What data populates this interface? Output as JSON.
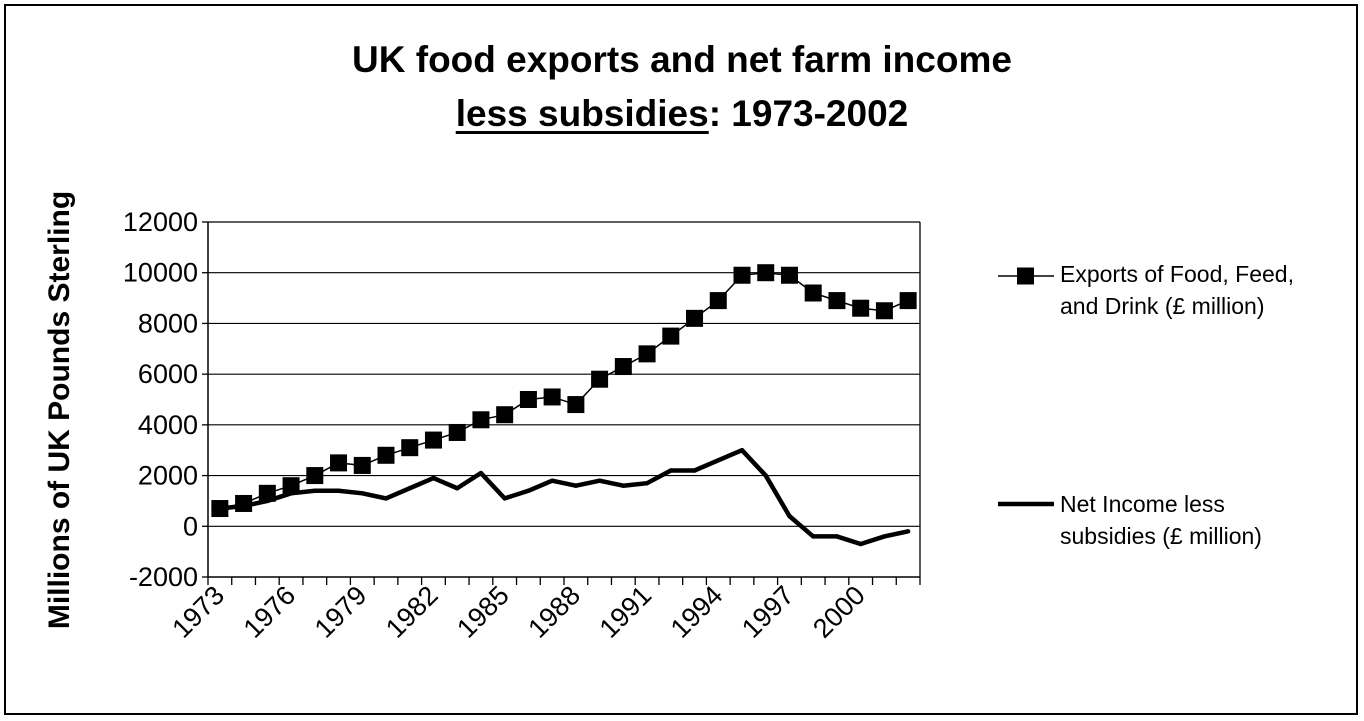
{
  "chart_data": {
    "type": "line",
    "title_line1": "UK food exports and net farm income",
    "title_line2_underlined": "less subsidies",
    "title_line2_rest": ": 1973-2002",
    "ylabel": "Millions of UK Pounds Sterling",
    "xlabel": "",
    "ylim": [
      -2000,
      12000
    ],
    "yticks": [
      -2000,
      0,
      2000,
      4000,
      6000,
      8000,
      10000,
      12000
    ],
    "x": [
      1973,
      1974,
      1975,
      1976,
      1977,
      1978,
      1979,
      1980,
      1981,
      1982,
      1983,
      1984,
      1985,
      1986,
      1987,
      1988,
      1989,
      1990,
      1991,
      1992,
      1993,
      1994,
      1995,
      1996,
      1997,
      1998,
      1999,
      2000,
      2001,
      2002
    ],
    "xtick_labels": [
      "1973",
      "1976",
      "1979",
      "1982",
      "1985",
      "1988",
      "1991",
      "1994",
      "1997",
      "2000"
    ],
    "grid": "horizontal",
    "legend_position": "right",
    "series": [
      {
        "name": "Exports of Food, Feed, and Drink (£ million)",
        "marker": "square",
        "values": [
          700,
          900,
          1300,
          1600,
          2000,
          2500,
          2400,
          2800,
          3100,
          3400,
          3700,
          4200,
          4400,
          5000,
          5100,
          4800,
          5800,
          6300,
          6800,
          7500,
          8200,
          8900,
          9900,
          10000,
          9900,
          9200,
          8900,
          8600,
          8500,
          8900
        ]
      },
      {
        "name": "Net Income less subsidies (£ million)",
        "marker": "none",
        "values": [
          700,
          800,
          1000,
          1300,
          1400,
          1400,
          1300,
          1100,
          1500,
          1900,
          1500,
          2100,
          1100,
          1400,
          1800,
          1600,
          1800,
          1600,
          1700,
          2200,
          2200,
          2600,
          3000,
          2000,
          400,
          -400,
          -400,
          -700,
          -400,
          -200
        ]
      }
    ]
  },
  "legend": {
    "series0_label": "Exports of Food, Feed,\nand Drink (£ million)",
    "series1_label": "Net Income less\nsubsidies (£ million)"
  }
}
